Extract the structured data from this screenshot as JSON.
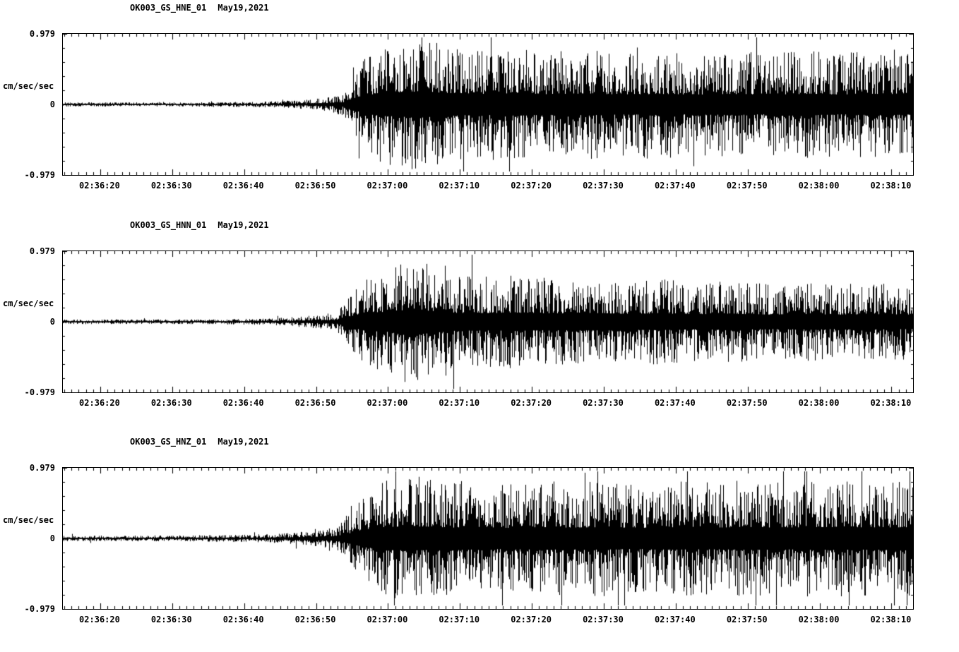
{
  "page": {
    "background": "#ffffff",
    "foreground": "#000000"
  },
  "chart_data": [
    {
      "type": "line",
      "title": "OK003_GS_HNE_01",
      "date_label": "May19,2021",
      "ylabel": "cm/sec/sec",
      "ylim": [
        -0.979,
        0.979
      ],
      "ytick_labels": [
        "0.979",
        "0",
        "-0.979"
      ],
      "x_tick_labels": [
        "02:36:20",
        "02:36:30",
        "02:36:40",
        "02:36:50",
        "02:37:00",
        "02:37:10",
        "02:37:20",
        "02:37:30",
        "02:37:40",
        "02:37:50",
        "02:38:00",
        "02:38:10"
      ],
      "x_first_tick_offset_s": 5.2,
      "x_major_tick_interval_s": 10,
      "x_minor_tick_interval_s": 1,
      "x_span_s": 118.2,
      "series_color": "#000000",
      "envelope": [
        [
          0,
          0.022
        ],
        [
          15,
          0.022
        ],
        [
          25,
          0.028
        ],
        [
          30,
          0.035
        ],
        [
          34,
          0.05
        ],
        [
          37,
          0.08
        ],
        [
          39,
          0.12
        ],
        [
          40,
          0.28
        ],
        [
          42,
          0.5
        ],
        [
          44,
          0.62
        ],
        [
          47,
          0.68
        ],
        [
          50,
          0.72
        ],
        [
          53,
          0.62
        ],
        [
          58,
          0.58
        ],
        [
          63,
          0.62
        ],
        [
          68,
          0.56
        ],
        [
          73,
          0.6
        ],
        [
          78,
          0.55
        ],
        [
          83,
          0.58
        ],
        [
          88,
          0.54
        ],
        [
          93,
          0.58
        ],
        [
          98,
          0.54
        ],
        [
          103,
          0.58
        ],
        [
          108,
          0.55
        ],
        [
          113,
          0.58
        ],
        [
          118.2,
          0.56
        ]
      ],
      "spike_probability": 0.015,
      "seed": 1234
    },
    {
      "type": "line",
      "title": "OK003_GS_HNN_01",
      "date_label": "May19,2021",
      "ylabel": "cm/sec/sec",
      "ylim": [
        -0.979,
        0.979
      ],
      "ytick_labels": [
        "0.979",
        "0",
        "-0.979"
      ],
      "x_tick_labels": [
        "02:36:20",
        "02:36:30",
        "02:36:40",
        "02:36:50",
        "02:37:00",
        "02:37:10",
        "02:37:20",
        "02:37:30",
        "02:37:40",
        "02:37:50",
        "02:38:00",
        "02:38:10"
      ],
      "x_first_tick_offset_s": 5.2,
      "x_major_tick_interval_s": 10,
      "x_minor_tick_interval_s": 1,
      "x_span_s": 118.2,
      "series_color": "#000000",
      "envelope": [
        [
          0,
          0.025
        ],
        [
          20,
          0.025
        ],
        [
          28,
          0.035
        ],
        [
          32,
          0.05
        ],
        [
          35,
          0.07
        ],
        [
          38,
          0.1
        ],
        [
          40,
          0.3
        ],
        [
          42,
          0.5
        ],
        [
          45,
          0.55
        ],
        [
          47,
          0.62
        ],
        [
          49,
          0.72
        ],
        [
          51,
          0.6
        ],
        [
          54,
          0.5
        ],
        [
          58,
          0.48
        ],
        [
          63,
          0.5
        ],
        [
          68,
          0.46
        ],
        [
          73,
          0.48
        ],
        [
          78,
          0.44
        ],
        [
          83,
          0.46
        ],
        [
          88,
          0.42
        ],
        [
          93,
          0.44
        ],
        [
          98,
          0.4
        ],
        [
          103,
          0.42
        ],
        [
          108,
          0.4
        ],
        [
          113,
          0.42
        ],
        [
          118.2,
          0.4
        ]
      ],
      "spike_probability": 0.015,
      "seed": 5678
    },
    {
      "type": "line",
      "title": "OK003_GS_HNZ_01",
      "date_label": "May19,2021",
      "ylabel": "cm/sec/sec",
      "ylim": [
        -0.979,
        0.979
      ],
      "ytick_labels": [
        "0.979",
        "0",
        "-0.979"
      ],
      "x_tick_labels": [
        "02:36:20",
        "02:36:30",
        "02:36:40",
        "02:36:50",
        "02:37:00",
        "02:37:10",
        "02:37:20",
        "02:37:30",
        "02:37:40",
        "02:37:50",
        "02:38:00",
        "02:38:10"
      ],
      "x_first_tick_offset_s": 5.2,
      "x_major_tick_interval_s": 10,
      "x_minor_tick_interval_s": 1,
      "x_span_s": 118.2,
      "series_color": "#000000",
      "envelope": [
        [
          0,
          0.03
        ],
        [
          18,
          0.032
        ],
        [
          26,
          0.04
        ],
        [
          30,
          0.05
        ],
        [
          33,
          0.07
        ],
        [
          36,
          0.09
        ],
        [
          38,
          0.13
        ],
        [
          40,
          0.3
        ],
        [
          42,
          0.5
        ],
        [
          45,
          0.62
        ],
        [
          48,
          0.68
        ],
        [
          50,
          0.65
        ],
        [
          54,
          0.6
        ],
        [
          58,
          0.62
        ],
        [
          62,
          0.58
        ],
        [
          66,
          0.62
        ],
        [
          70,
          0.6
        ],
        [
          75,
          0.62
        ],
        [
          80,
          0.58
        ],
        [
          85,
          0.62
        ],
        [
          90,
          0.6
        ],
        [
          95,
          0.62
        ],
        [
          100,
          0.6
        ],
        [
          105,
          0.63
        ],
        [
          110,
          0.62
        ],
        [
          114,
          0.6
        ],
        [
          118.2,
          0.62
        ]
      ],
      "spike_probability": 0.03,
      "seed": 9012
    }
  ]
}
